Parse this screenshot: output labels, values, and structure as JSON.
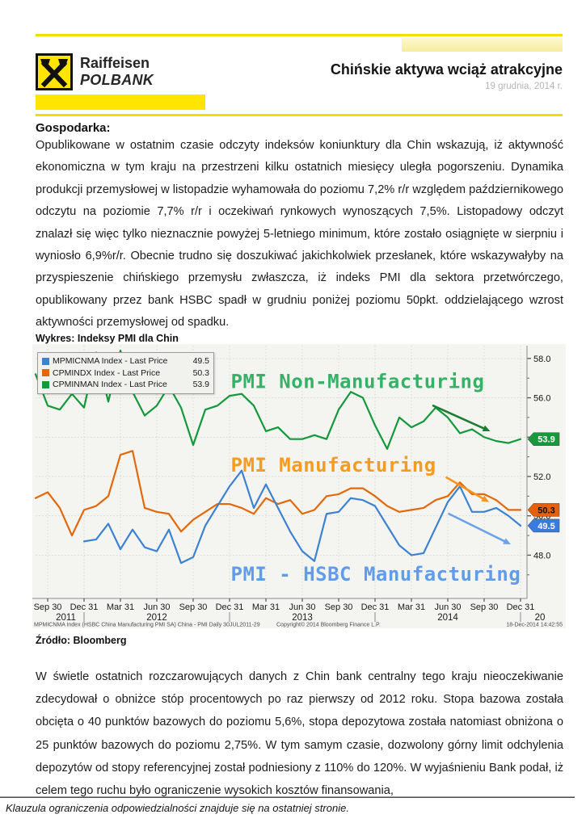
{
  "header": {
    "brand_line1": "Raiffeisen",
    "brand_line2": "POLBANK",
    "title": "Chińskie aktywa wciąż atrakcyjne",
    "date": "19 grudnia, 2014 r."
  },
  "economy": {
    "heading": "Gospodarka:",
    "paragraph1": "Opublikowane w ostatnim czasie odczyty indeksów koniunktury dla Chin wskazują, iż aktywność ekonomiczna w tym kraju na przestrzeni kilku ostatnich miesięcy uległa pogorszeniu. Dynamika produkcji przemysłowej w listopadzie wyhamowała do poziomu 7,2% r/r względem październikowego odczytu na poziomie 7,7% r/r i oczekiwań rynkowych wynoszących 7,5%. Listopadowy odczyt znalazł się więc tylko nieznacznie powyżej 5-letniego minimum, które zostało osiągnięte w sierpniu i wyniosło 6,9%r/r. Obecnie trudno się doszukiwać jakichkolwiek przesłanek, które wskazywałyby na przyspieszenie chińskiego przemysłu zwłaszcza, iż indeks PMI dla sektora przetwórczego, opublikowany przez bank HSBC spadł w grudniu poniżej poziomu 50pkt. oddzielającego wzrost aktywności przemysłowej od spadku.",
    "paragraph2": "W świetle ostatnich rozczarowujących danych z Chin bank centralny tego kraju nieoczekiwanie zdecydował o obniżce stóp procentowych po raz pierwszy od 2012 roku. Stopa bazowa została obcięta o 40 punktów bazowych do poziomu 5,6%, stopa depozytowa została natomiast obniżona o 25 punktów bazowych do poziomu 2,75%. W tym samym czasie, dozwolony górny limit odchylenia depozytów od stopy referencyjnej został podniesiony z 110% do 120%. W wyjaśnieniu Bank podał, iż celem tego ruchu było ograniczenie wysokich kosztów finansowania,"
  },
  "chart_caption": "Wykres:  Indeksy PMI dla Chin",
  "chart_source": "Źródło: Bloomberg",
  "footer": {
    "disclaimer": "Klauzula ograniczenia odpowiedzialności znajduje się na ostatniej stronie."
  },
  "colors": {
    "raiffeisen_yellow": "#ffe500",
    "pale_yellow": "#f6edа0",
    "hsbc_blue": "#3c82d2",
    "official_orange": "#e2690b",
    "nonmfg_green": "#12993c"
  },
  "chart_data": {
    "type": "line",
    "title": "Indeksy PMI dla Chin",
    "x_start": "2011-08",
    "x_end": "2014-12",
    "frequency": "monthly",
    "ylim": [
      45.8,
      58.65
    ],
    "y_ticks": [
      48,
      50,
      52,
      54,
      56,
      58
    ],
    "y_minor_ticks": [
      47,
      49,
      51,
      53,
      55,
      57
    ],
    "x_tick_months": [
      1,
      4,
      7,
      10,
      13,
      16,
      19,
      22,
      25,
      28,
      31,
      34,
      37,
      40
    ],
    "x_tick_labels": [
      "Sep 30",
      "Dec 31",
      "Mar 31",
      "Jun 30",
      "Sep 30",
      "Dec 31",
      "Mar 31",
      "Jun 30",
      "Sep 30",
      "Dec 31",
      "Mar 31",
      "Jun 30",
      "Sep 30",
      "Dec 31"
    ],
    "year_labels": [
      {
        "label": "2011",
        "m": 2.5
      },
      {
        "label": "2012",
        "m": 10
      },
      {
        "label": "2013",
        "m": 22
      },
      {
        "label": "2014",
        "m": 34
      },
      {
        "label": "20",
        "m": 41.6
      }
    ],
    "year_separators": [
      4,
      16,
      28,
      40
    ],
    "series": [
      {
        "id": "nonmfg",
        "legend": "CPMINMAN Index - Last Price",
        "last_price": "53.9",
        "color": "#12993c",
        "tag_bg": "#18983c",
        "tag_text": "#ffffff",
        "start_month": 0,
        "values": [
          57.2,
          55.6,
          55.4,
          56.2,
          55.5,
          58.3,
          55.8,
          58.4,
          56.3,
          55.1,
          55.6,
          56.6,
          55.5,
          53.6,
          55.4,
          55.6,
          56.1,
          56.2,
          55.6,
          54.3,
          54.5,
          53.9,
          53.9,
          54.1,
          53.9,
          55.4,
          56.3,
          56.0,
          54.6,
          53.4,
          55.0,
          54.5,
          54.8,
          55.5,
          55.0,
          54.2,
          54.4,
          54.0,
          53.8,
          53.7,
          53.9
        ]
      },
      {
        "id": "official",
        "legend": "CPMINDX Index - Last Price",
        "last_price": "50.3",
        "color": "#e2690b",
        "tag_bg": "#e55f0c",
        "tag_text": "#111111",
        "start_month": 0,
        "values": [
          50.9,
          51.2,
          50.4,
          49.0,
          50.3,
          50.5,
          51.0,
          53.1,
          53.3,
          50.4,
          50.2,
          50.1,
          49.2,
          49.8,
          50.2,
          50.6,
          50.6,
          50.4,
          50.1,
          50.9,
          50.6,
          50.8,
          50.1,
          50.3,
          51.0,
          51.1,
          51.4,
          51.4,
          51.0,
          50.5,
          50.2,
          50.3,
          50.4,
          50.8,
          51.0,
          51.7,
          51.1,
          51.1,
          50.8,
          50.3,
          50.3
        ]
      },
      {
        "id": "hsbc",
        "legend": "MPMICNMA Index - Last Price",
        "last_price": "49.5",
        "color": "#3c82d2",
        "tag_bg": "#3a7be0",
        "tag_text": "#ffffff",
        "start_month": 4,
        "values": [
          48.7,
          48.8,
          49.6,
          48.3,
          49.3,
          48.4,
          48.2,
          49.3,
          47.6,
          47.9,
          49.5,
          50.5,
          51.5,
          52.3,
          50.4,
          51.6,
          50.4,
          49.2,
          48.2,
          47.7,
          50.1,
          50.2,
          50.9,
          50.8,
          50.5,
          49.5,
          48.5,
          48.0,
          48.1,
          49.4,
          50.7,
          51.5,
          50.2,
          50.2,
          50.4,
          50.0,
          49.5
        ]
      }
    ],
    "legend_order": [
      "hsbc",
      "official",
      "nonmfg"
    ],
    "annotations": {
      "labels": [
        {
          "text": "PMI Non-Manufacturing",
          "color": "#35b267",
          "m": 16.1,
          "v": 56.5
        },
        {
          "text": "PMI Manufacturing",
          "color": "#f59b20",
          "m": 16.1,
          "v": 52.25
        },
        {
          "text": "PMI - HSBC Manufacturing",
          "color": "#5f9de8",
          "m": 16.1,
          "v": 46.7
        }
      ],
      "arrows": [
        {
          "color": "#1e7d33",
          "from_m": 32.8,
          "from_v": 55.6,
          "to_m": 37.5,
          "to_v": 54.3
        },
        {
          "color": "#f5941e",
          "from_m": 33.9,
          "from_v": 51.95,
          "to_m": 37.4,
          "to_v": 50.7
        },
        {
          "color": "#6ba3ea",
          "from_m": 34.1,
          "from_v": 50.1,
          "to_m": 39.2,
          "to_v": 48.55
        }
      ]
    },
    "footnotes": {
      "left": "MPMICNMA Index (HSBC China Manufacturing PMI SA) China - PMI   Daily 30JUL2011-29",
      "center": "Copyright© 2014 Bloomberg Finance L.P.",
      "right": "18-Dec-2014 14:42:55"
    }
  }
}
